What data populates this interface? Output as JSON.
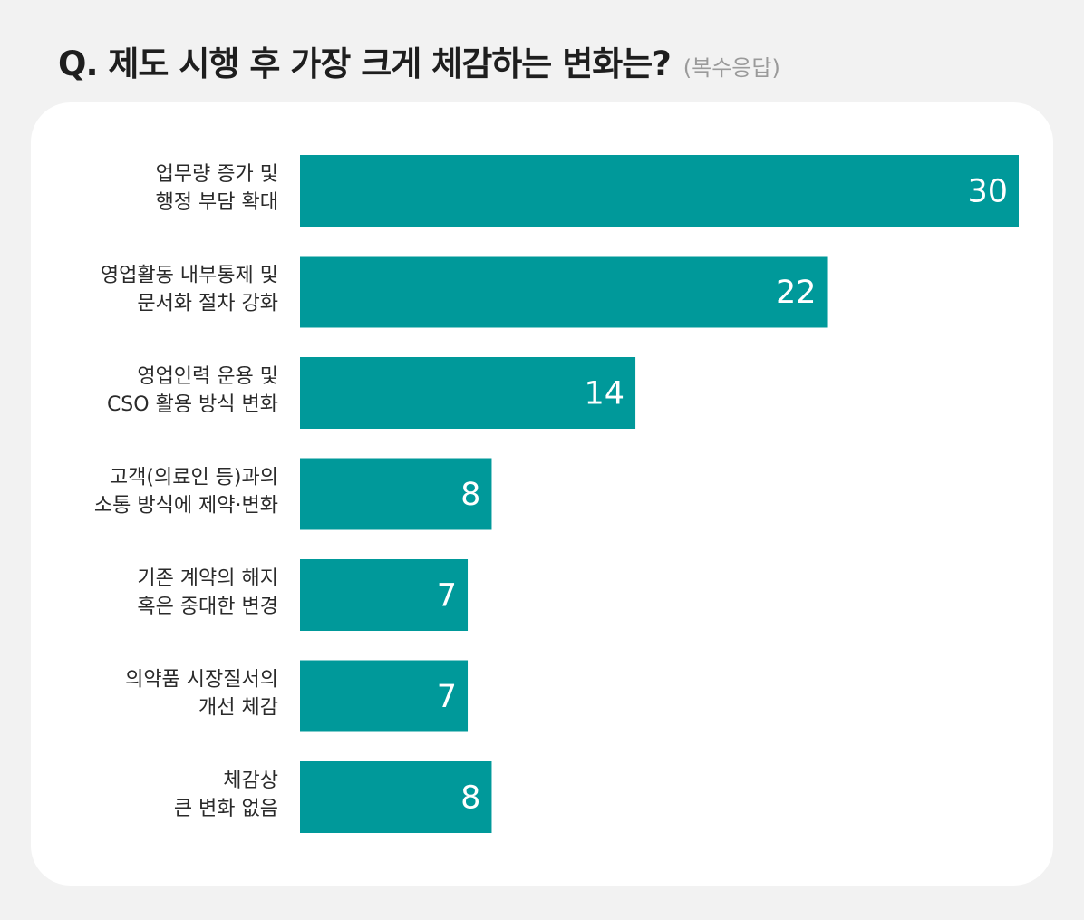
{
  "header": {
    "title": "Q. 제도 시행 후 가장 크게 체감하는 변화는?",
    "subtitle": "(복수응답)"
  },
  "colors": {
    "bar": "#00999a",
    "background": "#f2f2f2",
    "card": "#ffffff"
  },
  "chart_data": {
    "type": "bar",
    "orientation": "horizontal",
    "categories": [
      [
        "업무량 증가 및",
        "행정 부담 확대"
      ],
      [
        "영업활동 내부통제 및",
        "문서화 절차 강화"
      ],
      [
        "영업인력 운용 및",
        "CSO 활용 방식 변화"
      ],
      [
        "고객(의료인 등)과의",
        "소통 방식에 제약·변화"
      ],
      [
        "기존 계약의 해지",
        "혹은 중대한 변경"
      ],
      [
        "의약품 시장질서의",
        "개선 체감"
      ],
      [
        "체감상",
        "큰 변화 없음"
      ]
    ],
    "values": [
      30,
      22,
      14,
      8,
      7,
      7,
      8
    ],
    "xlim": [
      0,
      30
    ],
    "data_labels": true,
    "grid": false,
    "legend": "none"
  }
}
